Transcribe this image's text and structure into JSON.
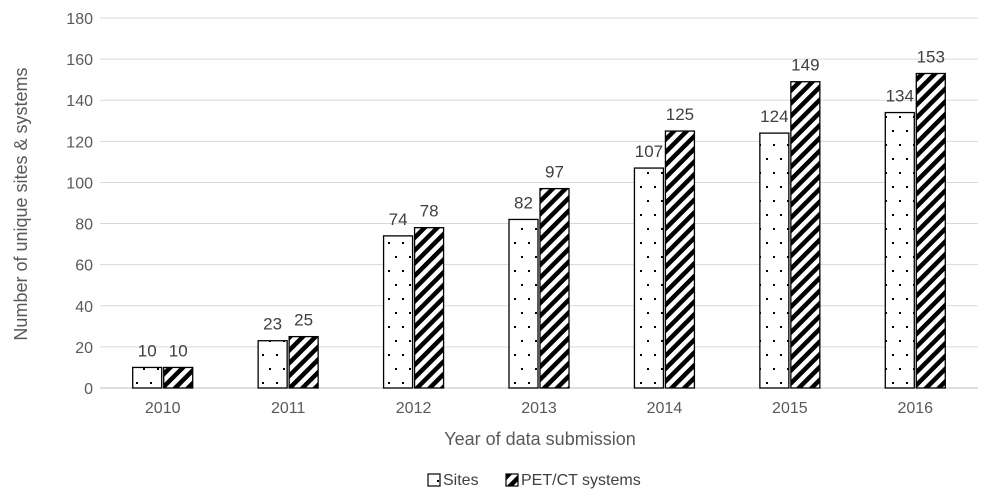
{
  "chart_data": {
    "type": "bar",
    "title": "",
    "xlabel": "Year of data submission",
    "ylabel": "Number of unique sites & systems",
    "categories": [
      "2010",
      "2011",
      "2012",
      "2013",
      "2014",
      "2015",
      "2016"
    ],
    "ylim": [
      0,
      180
    ],
    "yticks": [
      0,
      20,
      40,
      60,
      80,
      100,
      120,
      140,
      160,
      180
    ],
    "grid": true,
    "legend_position": "bottom",
    "series": [
      {
        "name": "Sites",
        "pattern": "dots",
        "values": [
          10,
          23,
          74,
          82,
          107,
          124,
          134
        ]
      },
      {
        "name": "PET/CT systems",
        "pattern": "diagonal-stripes",
        "values": [
          10,
          25,
          78,
          97,
          125,
          149,
          153
        ]
      }
    ],
    "colors": {
      "grid": "#d9d9d9",
      "bar_outline": "#000000",
      "text": "#595959"
    }
  }
}
